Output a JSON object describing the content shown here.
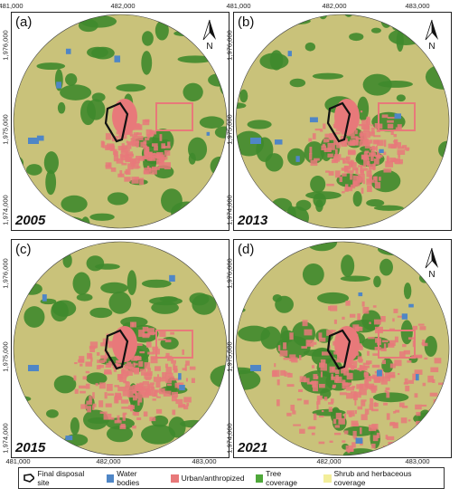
{
  "panels": [
    {
      "label": "(a)",
      "year": "2005"
    },
    {
      "label": "(b)",
      "year": "2013"
    },
    {
      "label": "(c)",
      "year": "2015"
    },
    {
      "label": "(d)",
      "year": "2021"
    }
  ],
  "axes": {
    "x_ticks": [
      "481,000",
      "482,000",
      "483,000"
    ],
    "y_ticks_top": [
      "1,976,000",
      "1,975,000",
      "1,974,000"
    ],
    "y_ticks_bottom": [
      "1,976,000",
      "1,975,000",
      "1,974,000"
    ]
  },
  "north_label": "N",
  "legend": {
    "items": [
      {
        "label": "Final disposal site",
        "type": "outline",
        "color": "#111111"
      },
      {
        "label": "Water bodies",
        "color": "#4f86c6"
      },
      {
        "label": "Urban/anthropized",
        "color": "#e8797a"
      },
      {
        "label": "Tree coverage",
        "color": "#4fa83a"
      },
      {
        "label": "Shrub and herbaceous coverage",
        "color": "#f3ee9a"
      }
    ]
  },
  "colors": {
    "shrub": "#c9c27a",
    "tree": "#3f8a2c",
    "urban": "#e8797a",
    "water": "#4f86c6"
  }
}
